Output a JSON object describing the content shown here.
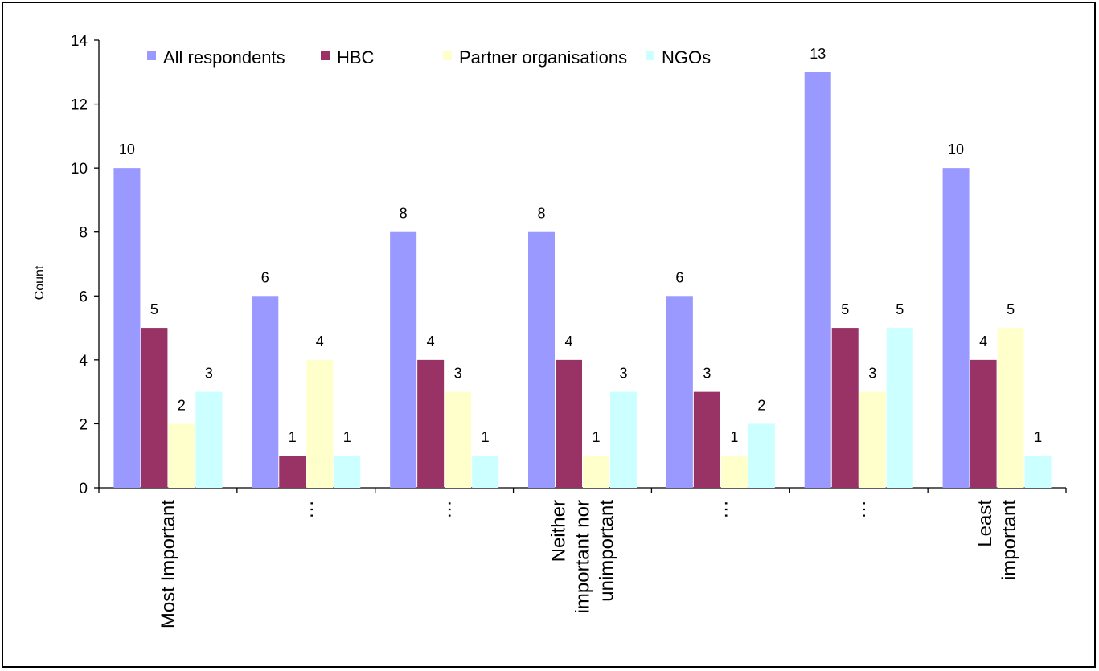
{
  "chart_data": {
    "type": "bar",
    "ylabel": "Count",
    "xlabel": "",
    "ylim": [
      0,
      14
    ],
    "yticks": [
      0,
      2,
      4,
      6,
      8,
      10,
      12,
      14
    ],
    "grid": false,
    "legend_position": "top",
    "categories": [
      [
        "Most Important"
      ],
      [
        "…"
      ],
      [
        "…"
      ],
      [
        "Neither",
        "important nor",
        "unimportant"
      ],
      [
        "…"
      ],
      [
        "…"
      ],
      [
        "Least",
        "important"
      ]
    ],
    "series": [
      {
        "name": "All respondents",
        "color": "#9999ff",
        "values": [
          10,
          6,
          8,
          8,
          6,
          13,
          10
        ]
      },
      {
        "name": "HBC",
        "color": "#993366",
        "values": [
          5,
          1,
          4,
          4,
          3,
          5,
          4
        ]
      },
      {
        "name": "Partner organisations",
        "color": "#ffffcc",
        "values": [
          2,
          4,
          3,
          1,
          1,
          3,
          5
        ]
      },
      {
        "name": "NGOs",
        "color": "#ccffff",
        "values": [
          3,
          1,
          1,
          3,
          2,
          5,
          1
        ]
      }
    ],
    "data_labels": true
  }
}
